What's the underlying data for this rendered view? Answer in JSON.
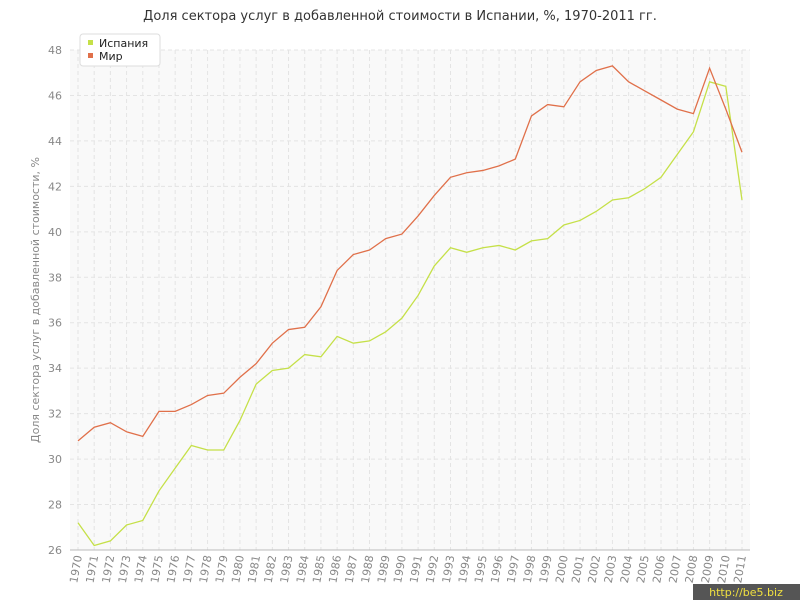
{
  "chart_data": {
    "type": "line",
    "title": "Доля сектора услуг в добавленной стоимости в Испании, %, 1970-2011 гг.",
    "y_label": "Доля сектора услуг в добавленной стоимости, %",
    "watermark": "http://be5.biz",
    "categories": [
      "1970",
      "1971",
      "1972",
      "1973",
      "1974",
      "1975",
      "1976",
      "1977",
      "1978",
      "1979",
      "1980",
      "1981",
      "1982",
      "1983",
      "1984",
      "1985",
      "1986",
      "1987",
      "1988",
      "1989",
      "1990",
      "1991",
      "1992",
      "1993",
      "1994",
      "1995",
      "1996",
      "1997",
      "1998",
      "1999",
      "2000",
      "2001",
      "2002",
      "2003",
      "2004",
      "2005",
      "2006",
      "2007",
      "2008",
      "2009",
      "2010",
      "2011"
    ],
    "series": [
      {
        "name": "Испания",
        "color": "#c5e048",
        "values": [
          27.2,
          26.2,
          26.4,
          27.1,
          27.3,
          28.6,
          29.6,
          30.6,
          30.4,
          30.4,
          31.7,
          33.3,
          33.9,
          34.0,
          34.6,
          34.5,
          35.4,
          35.1,
          35.2,
          35.6,
          36.2,
          37.2,
          38.5,
          39.3,
          39.1,
          39.3,
          39.4,
          39.2,
          39.6,
          39.7,
          40.3,
          40.5,
          40.9,
          41.4,
          41.5,
          41.9,
          42.4,
          43.4,
          44.4,
          46.6,
          46.4,
          41.4
        ]
      },
      {
        "name": "Мир",
        "color": "#e0704a",
        "values": [
          30.8,
          31.4,
          31.6,
          31.2,
          31.0,
          32.1,
          32.1,
          32.4,
          32.8,
          32.9,
          33.6,
          34.2,
          35.1,
          35.7,
          35.8,
          36.7,
          38.3,
          39.0,
          39.2,
          39.7,
          39.9,
          40.7,
          41.6,
          42.4,
          42.6,
          42.7,
          42.9,
          43.2,
          45.1,
          45.6,
          45.5,
          46.6,
          47.1,
          47.3,
          46.6,
          46.2,
          45.8,
          45.4,
          45.2,
          47.2,
          45.4,
          43.5
        ]
      }
    ],
    "ylim": [
      26,
      48
    ],
    "yticks": [
      26,
      28,
      30,
      32,
      34,
      36,
      38,
      40,
      42,
      44,
      46,
      48
    ],
    "grid": true,
    "legend": "top-left"
  }
}
